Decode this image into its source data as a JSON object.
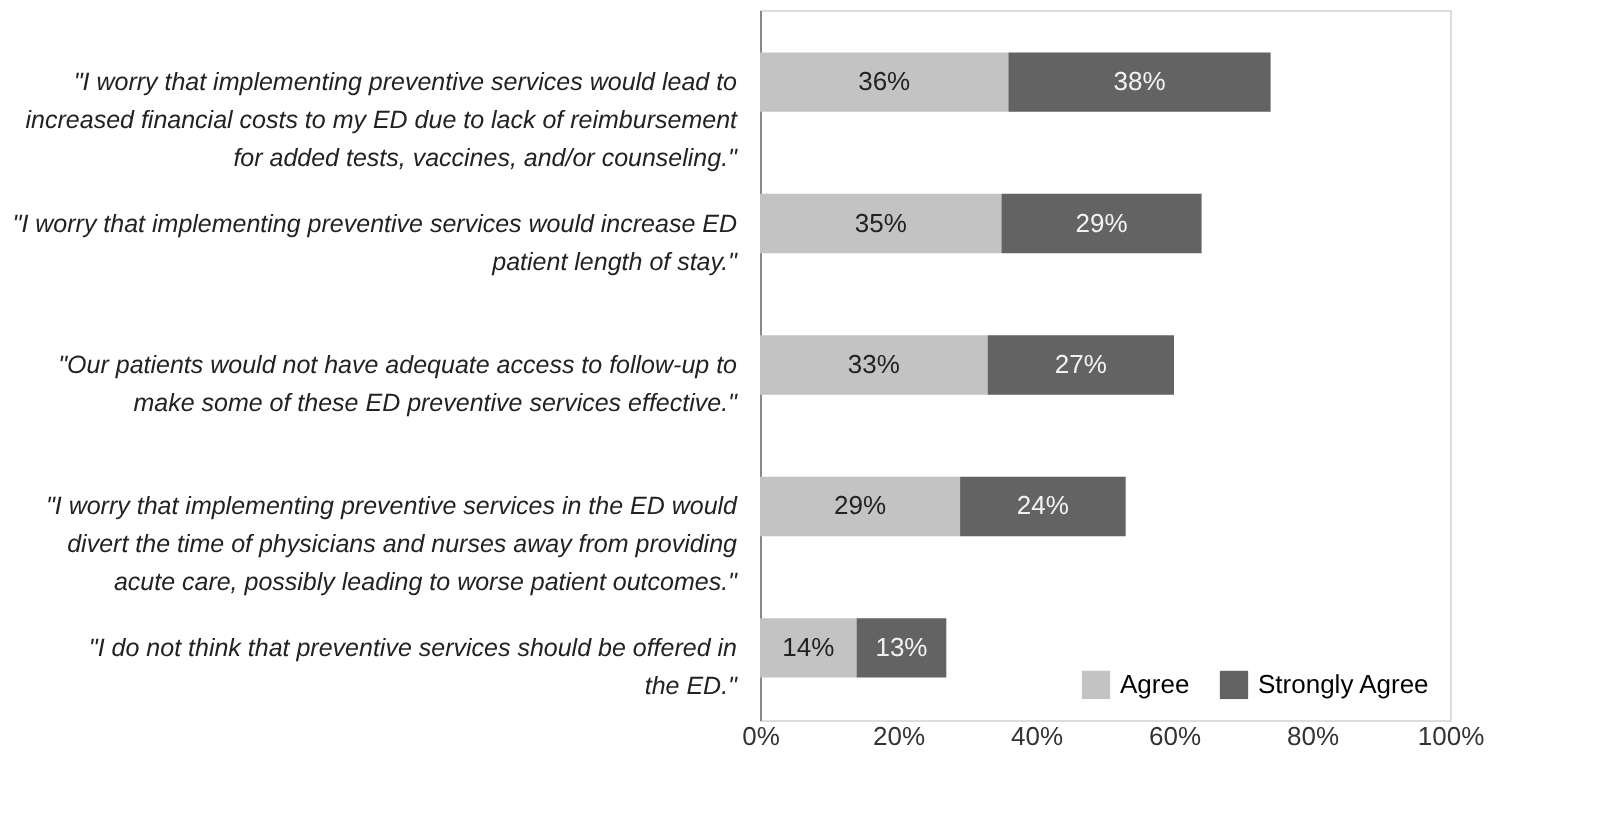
{
  "chart_data": {
    "type": "bar",
    "orientation": "horizontal",
    "stacked": true,
    "categories": [
      "\"I worry that implementing preventive services would lead to increased financial costs to my ED due to lack of reimbursement for added tests, vaccines, and/or counseling.\"",
      "\"I worry that implementing preventive services would increase ED patient length of stay.\"",
      "\"Our patients would not have adequate access to follow-up to make some of these ED preventive services effective.\"",
      "\"I worry that implementing preventive services in the ED would divert the time of physicians and nurses away from providing acute care, possibly leading to worse patient outcomes.\"",
      "\"I do not think that preventive services should be offered in the ED.\""
    ],
    "series": [
      {
        "name": "Agree",
        "color": "#c3c3c3",
        "values": [
          36,
          35,
          33,
          29,
          14
        ],
        "value_labels": [
          "36%",
          "35%",
          "33%",
          "29%",
          "14%"
        ]
      },
      {
        "name": "Strongly Agree",
        "color": "#636363",
        "values": [
          38,
          29,
          27,
          24,
          13
        ],
        "value_labels": [
          "38%",
          "29%",
          "27%",
          "24%",
          "13%"
        ]
      }
    ],
    "xlim": [
      0,
      100
    ],
    "xticks": [
      {
        "value": 0,
        "label": "0%"
      },
      {
        "value": 20,
        "label": "20%"
      },
      {
        "value": 40,
        "label": "40%"
      },
      {
        "value": 60,
        "label": "60%"
      },
      {
        "value": 80,
        "label": "80%"
      },
      {
        "value": 100,
        "label": "100%"
      }
    ],
    "legend": "bottom right",
    "grid": false
  }
}
